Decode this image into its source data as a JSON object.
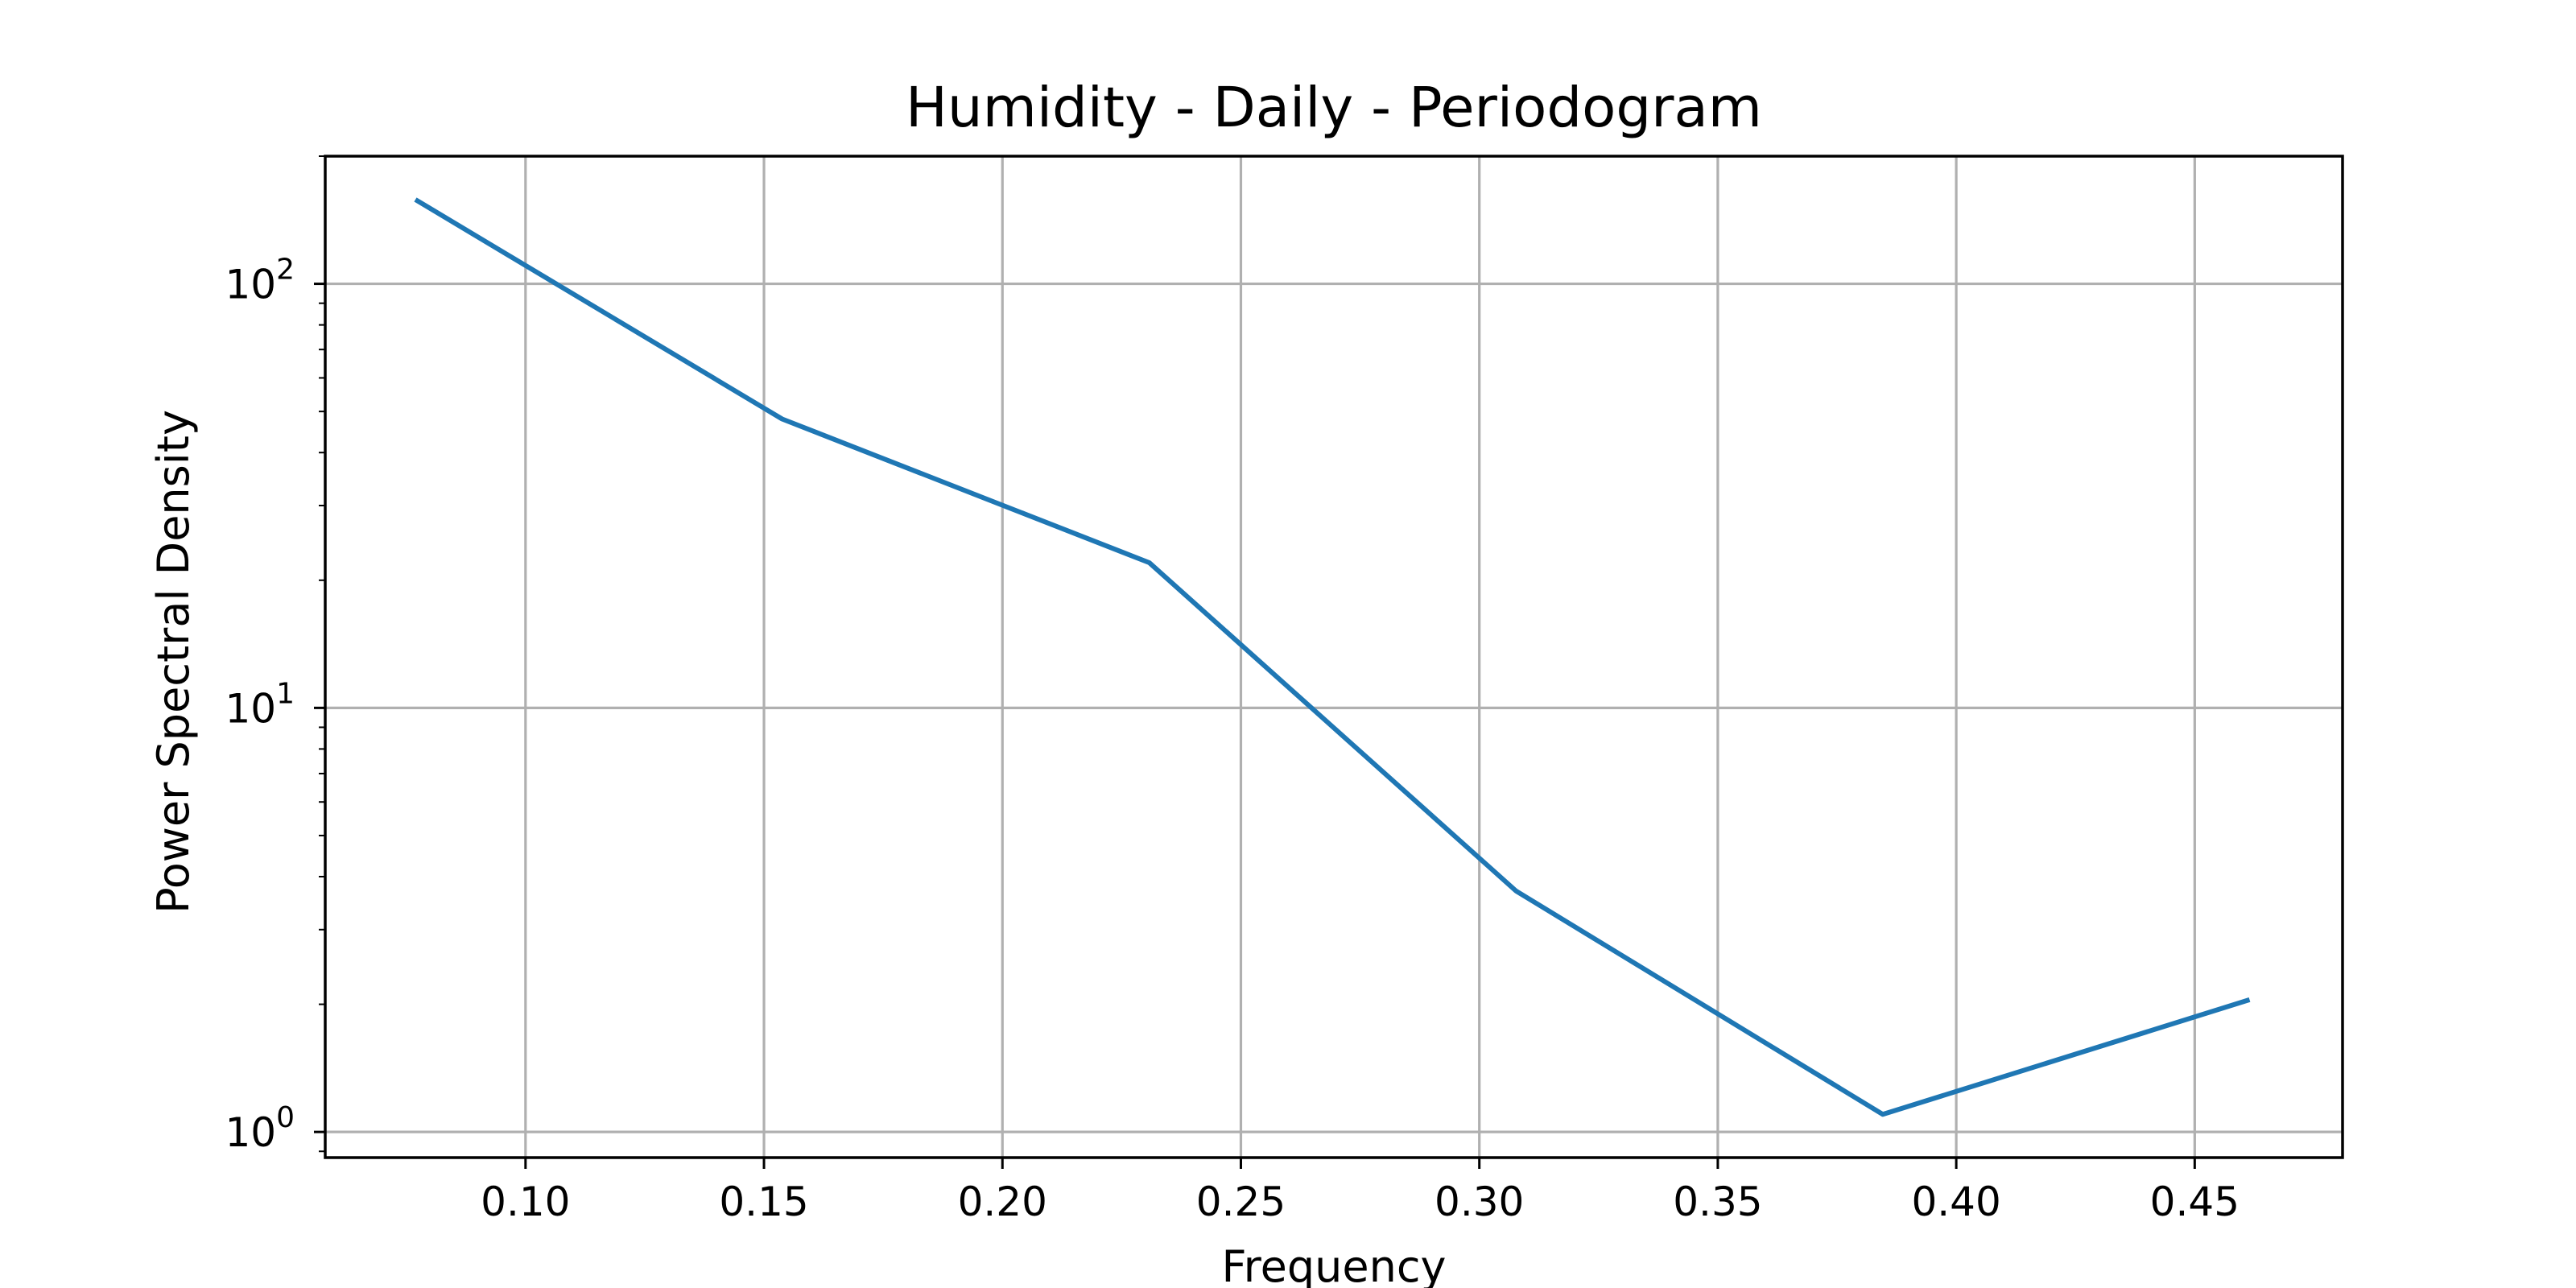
{
  "chart_data": {
    "type": "line",
    "title": "Humidity - Daily - Periodogram",
    "xlabel": "Frequency",
    "ylabel": "Power Spectral Density",
    "xscale": "linear",
    "yscale": "log",
    "xlim": [
      0.058,
      0.481
    ],
    "ylim": [
      0.87,
      200
    ],
    "grid": true,
    "x_ticks": [
      {
        "value": 0.1,
        "label": "0.10"
      },
      {
        "value": 0.15,
        "label": "0.15"
      },
      {
        "value": 0.2,
        "label": "0.20"
      },
      {
        "value": 0.25,
        "label": "0.25"
      },
      {
        "value": 0.3,
        "label": "0.30"
      },
      {
        "value": 0.35,
        "label": "0.35"
      },
      {
        "value": 0.4,
        "label": "0.40"
      },
      {
        "value": 0.45,
        "label": "0.45"
      }
    ],
    "y_ticks": [
      {
        "value": 1,
        "base": "10",
        "exponent": "0"
      },
      {
        "value": 10,
        "base": "10",
        "exponent": "1"
      },
      {
        "value": 100,
        "base": "10",
        "exponent": "2"
      }
    ],
    "series": [
      {
        "color": "#1f77b4",
        "x": [
          0.0769,
          0.1538,
          0.2308,
          0.3077,
          0.3846,
          0.4615
        ],
        "y": [
          158,
          48,
          22,
          3.7,
          1.1,
          2.05
        ]
      }
    ]
  }
}
